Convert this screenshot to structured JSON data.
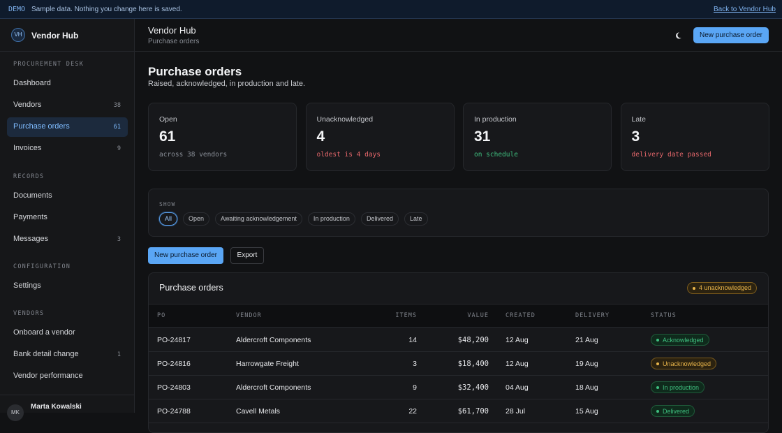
{
  "banner": {
    "tag": "DEMO",
    "text": "Sample data. Nothing you change here is saved.",
    "link": "Back to Vendor Hub"
  },
  "sidebar": {
    "logo": "VH",
    "brand": "Vendor Hub",
    "active": [
      0,
      2
    ],
    "sections": [
      {
        "title": "PROCUREMENT DESK",
        "items": [
          {
            "label": "Dashboard"
          },
          {
            "label": "Vendors",
            "count": "38"
          },
          {
            "label": "Purchase orders",
            "count": "61"
          },
          {
            "label": "Invoices",
            "count": "9"
          }
        ]
      },
      {
        "title": "RECORDS",
        "items": [
          {
            "label": "Documents"
          },
          {
            "label": "Payments"
          },
          {
            "label": "Messages",
            "count": "3"
          }
        ]
      },
      {
        "title": "CONFIGURATION",
        "items": [
          {
            "label": "Settings"
          }
        ]
      },
      {
        "title": "VENDORS",
        "items": [
          {
            "label": "Onboard a vendor"
          },
          {
            "label": "Bank detail change",
            "count": "1"
          },
          {
            "label": "Vendor performance"
          }
        ]
      }
    ],
    "user": {
      "initials": "MK",
      "name": "Marta Kowalski"
    }
  },
  "header": {
    "title": "Vendor Hub",
    "subtitle": "Purchase orders",
    "button": "New purchase order"
  },
  "page": {
    "title": "Purchase orders",
    "subtitle": "Raised, acknowledged, in production and late."
  },
  "stats": [
    {
      "label": "Open",
      "value": "61",
      "note": "across 38 vendors",
      "note_color": "#8a8f98"
    },
    {
      "label": "Unacknowledged",
      "value": "4",
      "note": "oldest is 4 days",
      "note_color": "#e5676b"
    },
    {
      "label": "In production",
      "value": "31",
      "note": "on schedule",
      "note_color": "#3fbf7f"
    },
    {
      "label": "Late",
      "value": "3",
      "note": "delivery date passed",
      "note_color": "#e5676b"
    }
  ],
  "filters": {
    "label": "SHOW",
    "selected": 0,
    "options": [
      "All",
      "Open",
      "Awaiting acknowledgement",
      "In production",
      "Delivered",
      "Late"
    ]
  },
  "actions": {
    "primary": "New purchase order",
    "secondary": "Export"
  },
  "table": {
    "title": "Purchase orders",
    "badge": "4 unacknowledged",
    "columns": [
      "PO",
      "VENDOR",
      "ITEMS",
      "VALUE",
      "CREATED",
      "DELIVERY",
      "STATUS"
    ],
    "rows": [
      [
        "PO-24817",
        "Aldercroft Components",
        "14",
        "$48,200",
        "12 Aug",
        "21 Aug",
        "Acknowledged"
      ],
      [
        "PO-24816",
        "Harrowgate Freight",
        "3",
        "$18,400",
        "12 Aug",
        "19 Aug",
        "Unacknowledged"
      ],
      [
        "PO-24803",
        "Aldercroft Components",
        "9",
        "$32,400",
        "04 Aug",
        "18 Aug",
        "In production"
      ],
      [
        "PO-24788",
        "Cavell Metals",
        "22",
        "$61,700",
        "28 Jul",
        "15 Aug",
        "Delivered"
      ]
    ]
  }
}
